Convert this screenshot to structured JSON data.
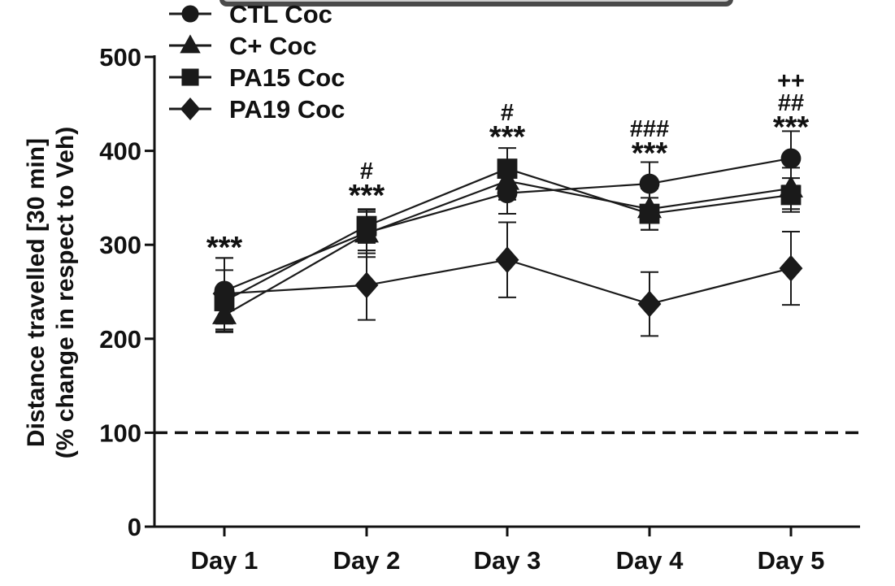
{
  "chart_data": {
    "type": "line",
    "title": "",
    "ylabel_line1": "Distance travelled [30 min]",
    "ylabel_line2": "(% change in respect to Veh)",
    "xlabel": "",
    "categories": [
      "Day 1",
      "Day 2",
      "Day 3",
      "Day 4",
      "Day 5"
    ],
    "ylim": [
      0,
      500
    ],
    "yticks": [
      0,
      100,
      200,
      300,
      400,
      500
    ],
    "reference_line": {
      "value": 100,
      "style": "dashed"
    },
    "legend_position": "top-left",
    "series": [
      {
        "name": "CTL Coc",
        "marker": "circle",
        "values": [
          251,
          313,
          355,
          365,
          392
        ],
        "errors": [
          35,
          22,
          22,
          23,
          29
        ]
      },
      {
        "name": "C+ Coc",
        "marker": "triangle",
        "values": [
          225,
          312,
          368,
          338,
          360
        ],
        "errors": [
          17,
          25,
          20,
          22,
          22
        ]
      },
      {
        "name": "PA15 Coc",
        "marker": "square",
        "values": [
          240,
          320,
          381,
          333,
          353
        ],
        "errors": [
          33,
          18,
          22,
          17,
          18
        ]
      },
      {
        "name": "PA19 Coc",
        "marker": "diamond",
        "values": [
          248,
          257,
          284,
          237,
          275
        ],
        "errors": [
          38,
          37,
          40,
          34,
          39
        ]
      }
    ],
    "annotations": [
      {
        "category": "Day 1",
        "lines": [
          "***"
        ]
      },
      {
        "category": "Day 2",
        "lines": [
          "#",
          "***"
        ]
      },
      {
        "category": "Day 3",
        "lines": [
          "#",
          "***"
        ]
      },
      {
        "category": "Day 4",
        "lines": [
          "###",
          "***"
        ]
      },
      {
        "category": "Day 5",
        "lines": [
          "++",
          "##",
          "***"
        ]
      }
    ],
    "colors": {
      "line": "#1a1a1a",
      "axis": "#111111"
    }
  }
}
